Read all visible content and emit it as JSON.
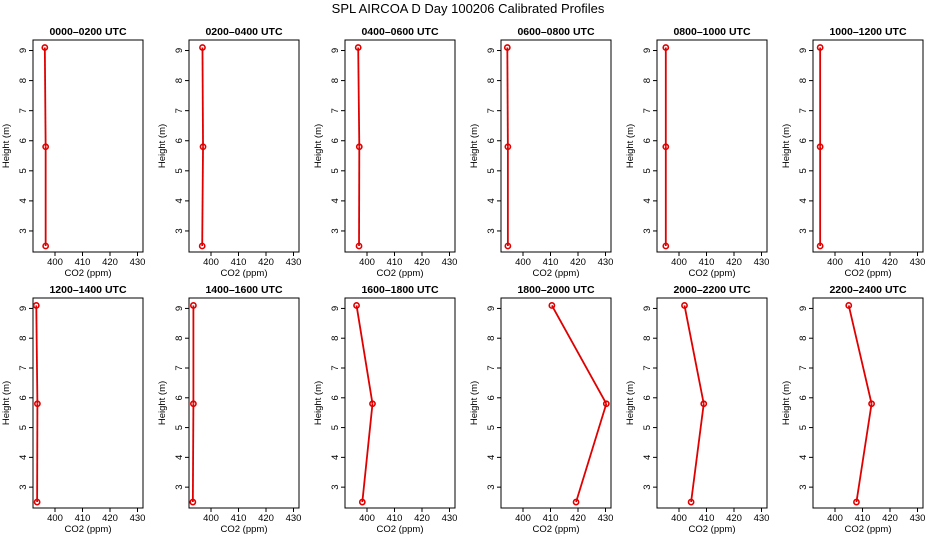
{
  "title": "SPL AIRCOA D  Day 100206  Calibrated Profiles",
  "chart_data": [
    {
      "type": "line",
      "title": "0000–0200 UTC",
      "xlabel": "CO2 (ppm)",
      "ylabel": "Height (m)",
      "xlim": [
        392,
        432
      ],
      "ylim": [
        2.3,
        9.35
      ],
      "xticks": [
        400,
        410,
        420,
        430
      ],
      "yticks": [
        3,
        4,
        5,
        6,
        7,
        8,
        9
      ],
      "x": [
        396.6,
        396.6,
        396.3
      ],
      "y": [
        2.5,
        5.8,
        9.1
      ]
    },
    {
      "type": "line",
      "title": "0200–0400 UTC",
      "xlabel": "CO2 (ppm)",
      "ylabel": "Height (m)",
      "xlim": [
        392,
        432
      ],
      "ylim": [
        2.3,
        9.35
      ],
      "xticks": [
        400,
        410,
        420,
        430
      ],
      "yticks": [
        3,
        4,
        5,
        6,
        7,
        8,
        9
      ],
      "x": [
        396.8,
        397.1,
        396.9
      ],
      "y": [
        2.5,
        5.8,
        9.1
      ]
    },
    {
      "type": "line",
      "title": "0400–0600 UTC",
      "xlabel": "CO2 (ppm)",
      "ylabel": "Height (m)",
      "xlim": [
        392,
        432
      ],
      "ylim": [
        2.3,
        9.35
      ],
      "xticks": [
        400,
        410,
        420,
        430
      ],
      "yticks": [
        3,
        4,
        5,
        6,
        7,
        8,
        9
      ],
      "x": [
        397.1,
        397.2,
        396.8
      ],
      "y": [
        2.5,
        5.8,
        9.1
      ]
    },
    {
      "type": "line",
      "title": "0600–0800 UTC",
      "xlabel": "CO2 (ppm)",
      "ylabel": "Height (m)",
      "xlim": [
        392,
        432
      ],
      "ylim": [
        2.3,
        9.35
      ],
      "xticks": [
        400,
        410,
        420,
        430
      ],
      "yticks": [
        3,
        4,
        5,
        6,
        7,
        8,
        9
      ],
      "x": [
        394.5,
        394.5,
        394.3
      ],
      "y": [
        2.5,
        5.8,
        9.1
      ]
    },
    {
      "type": "line",
      "title": "0800–1000 UTC",
      "xlabel": "CO2 (ppm)",
      "ylabel": "Height (m)",
      "xlim": [
        392,
        432
      ],
      "ylim": [
        2.3,
        9.35
      ],
      "xticks": [
        400,
        410,
        420,
        430
      ],
      "yticks": [
        3,
        4,
        5,
        6,
        7,
        8,
        9
      ],
      "x": [
        395.2,
        395.2,
        395.2
      ],
      "y": [
        2.5,
        5.8,
        9.1
      ]
    },
    {
      "type": "line",
      "title": "1000–1200 UTC",
      "xlabel": "CO2 (ppm)",
      "ylabel": "Height (m)",
      "xlim": [
        392,
        432
      ],
      "ylim": [
        2.3,
        9.35
      ],
      "xticks": [
        400,
        410,
        420,
        430
      ],
      "yticks": [
        3,
        4,
        5,
        6,
        7,
        8,
        9
      ],
      "x": [
        394.6,
        394.6,
        394.6
      ],
      "y": [
        2.5,
        5.8,
        9.1
      ]
    },
    {
      "type": "line",
      "title": "1200–1400 UTC",
      "xlabel": "CO2 (ppm)",
      "ylabel": "Height (m)",
      "xlim": [
        392,
        432
      ],
      "ylim": [
        2.3,
        9.35
      ],
      "xticks": [
        400,
        410,
        420,
        430
      ],
      "yticks": [
        3,
        4,
        5,
        6,
        7,
        8,
        9
      ],
      "x": [
        393.5,
        393.6,
        393.2
      ],
      "y": [
        2.5,
        5.8,
        9.1
      ]
    },
    {
      "type": "line",
      "title": "1400–1600 UTC",
      "xlabel": "CO2 (ppm)",
      "ylabel": "Height (m)",
      "xlim": [
        392,
        432
      ],
      "ylim": [
        2.3,
        9.35
      ],
      "xticks": [
        400,
        410,
        420,
        430
      ],
      "yticks": [
        3,
        4,
        5,
        6,
        7,
        8,
        9
      ],
      "x": [
        393.4,
        393.6,
        393.6
      ],
      "y": [
        2.5,
        5.8,
        9.1
      ]
    },
    {
      "type": "line",
      "title": "1600–1800 UTC",
      "xlabel": "CO2 (ppm)",
      "ylabel": "Height (m)",
      "xlim": [
        392,
        432
      ],
      "ylim": [
        2.3,
        9.35
      ],
      "xticks": [
        400,
        410,
        420,
        430
      ],
      "yticks": [
        3,
        4,
        5,
        6,
        7,
        8,
        9
      ],
      "x": [
        398.3,
        402.0,
        396.2
      ],
      "y": [
        2.5,
        5.8,
        9.1
      ]
    },
    {
      "type": "line",
      "title": "1800–2000 UTC",
      "xlabel": "CO2 (ppm)",
      "ylabel": "Height (m)",
      "xlim": [
        392,
        432
      ],
      "ylim": [
        2.3,
        9.35
      ],
      "xticks": [
        400,
        410,
        420,
        430
      ],
      "yticks": [
        3,
        4,
        5,
        6,
        7,
        8,
        9
      ],
      "x": [
        419.3,
        430.3,
        410.5
      ],
      "y": [
        2.5,
        5.8,
        9.1
      ]
    },
    {
      "type": "line",
      "title": "2000–2200 UTC",
      "xlabel": "CO2 (ppm)",
      "ylabel": "Height (m)",
      "xlim": [
        392,
        432
      ],
      "ylim": [
        2.3,
        9.35
      ],
      "xticks": [
        400,
        410,
        420,
        430
      ],
      "yticks": [
        3,
        4,
        5,
        6,
        7,
        8,
        9
      ],
      "x": [
        404.4,
        409.0,
        402.0
      ],
      "y": [
        2.5,
        5.8,
        9.1
      ]
    },
    {
      "type": "line",
      "title": "2200–2400 UTC",
      "xlabel": "CO2 (ppm)",
      "ylabel": "Height (m)",
      "xlim": [
        392,
        432
      ],
      "ylim": [
        2.3,
        9.35
      ],
      "xticks": [
        400,
        410,
        420,
        430
      ],
      "yticks": [
        3,
        4,
        5,
        6,
        7,
        8,
        9
      ],
      "x": [
        407.8,
        413.3,
        405.0
      ],
      "y": [
        2.5,
        5.8,
        9.1
      ]
    }
  ]
}
